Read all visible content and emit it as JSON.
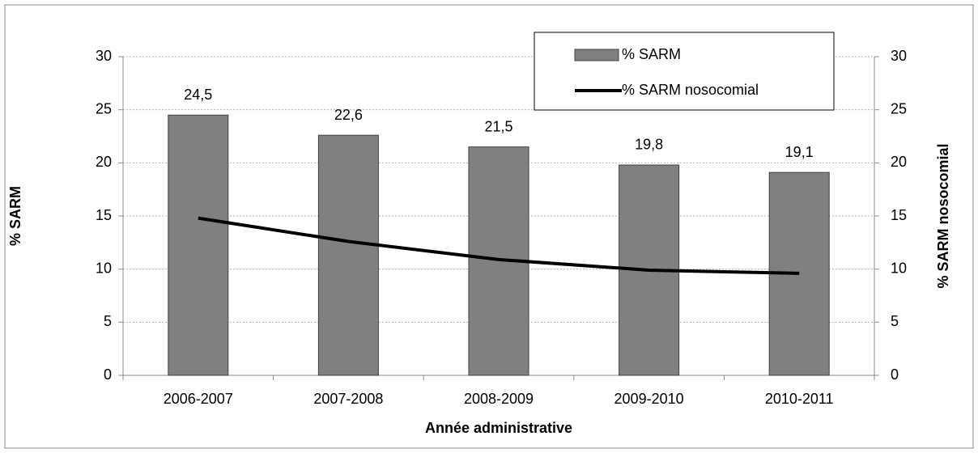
{
  "chart_data": {
    "type": "bar-line",
    "x_label": "Année administrative",
    "y_label": "% SARM",
    "y2_label": "% SARM nosocomial",
    "categories": [
      "2006-2007",
      "2007-2008",
      "2008-2009",
      "2009-2010",
      "2010-2011"
    ],
    "series": [
      {
        "name": "% SARM",
        "type": "bar",
        "color": "#808080",
        "values": [
          24.5,
          22.6,
          21.5,
          19.8,
          19.1
        ],
        "value_labels": [
          "24,5",
          "22,6",
          "21,5",
          "19,8",
          "19,1"
        ]
      },
      {
        "name": "% SARM nosocomial",
        "type": "line",
        "axis": "y2",
        "color": "#000000",
        "values": [
          14.8,
          12.6,
          10.9,
          9.9,
          9.6
        ]
      }
    ],
    "ylim": [
      0,
      30
    ],
    "yticks": [
      0,
      5,
      10,
      15,
      20,
      25,
      30
    ],
    "y2lim": [
      0,
      30
    ],
    "y2ticks": [
      0,
      5,
      10,
      15,
      20,
      25,
      30
    ],
    "grid": true,
    "legend": "top-right"
  }
}
